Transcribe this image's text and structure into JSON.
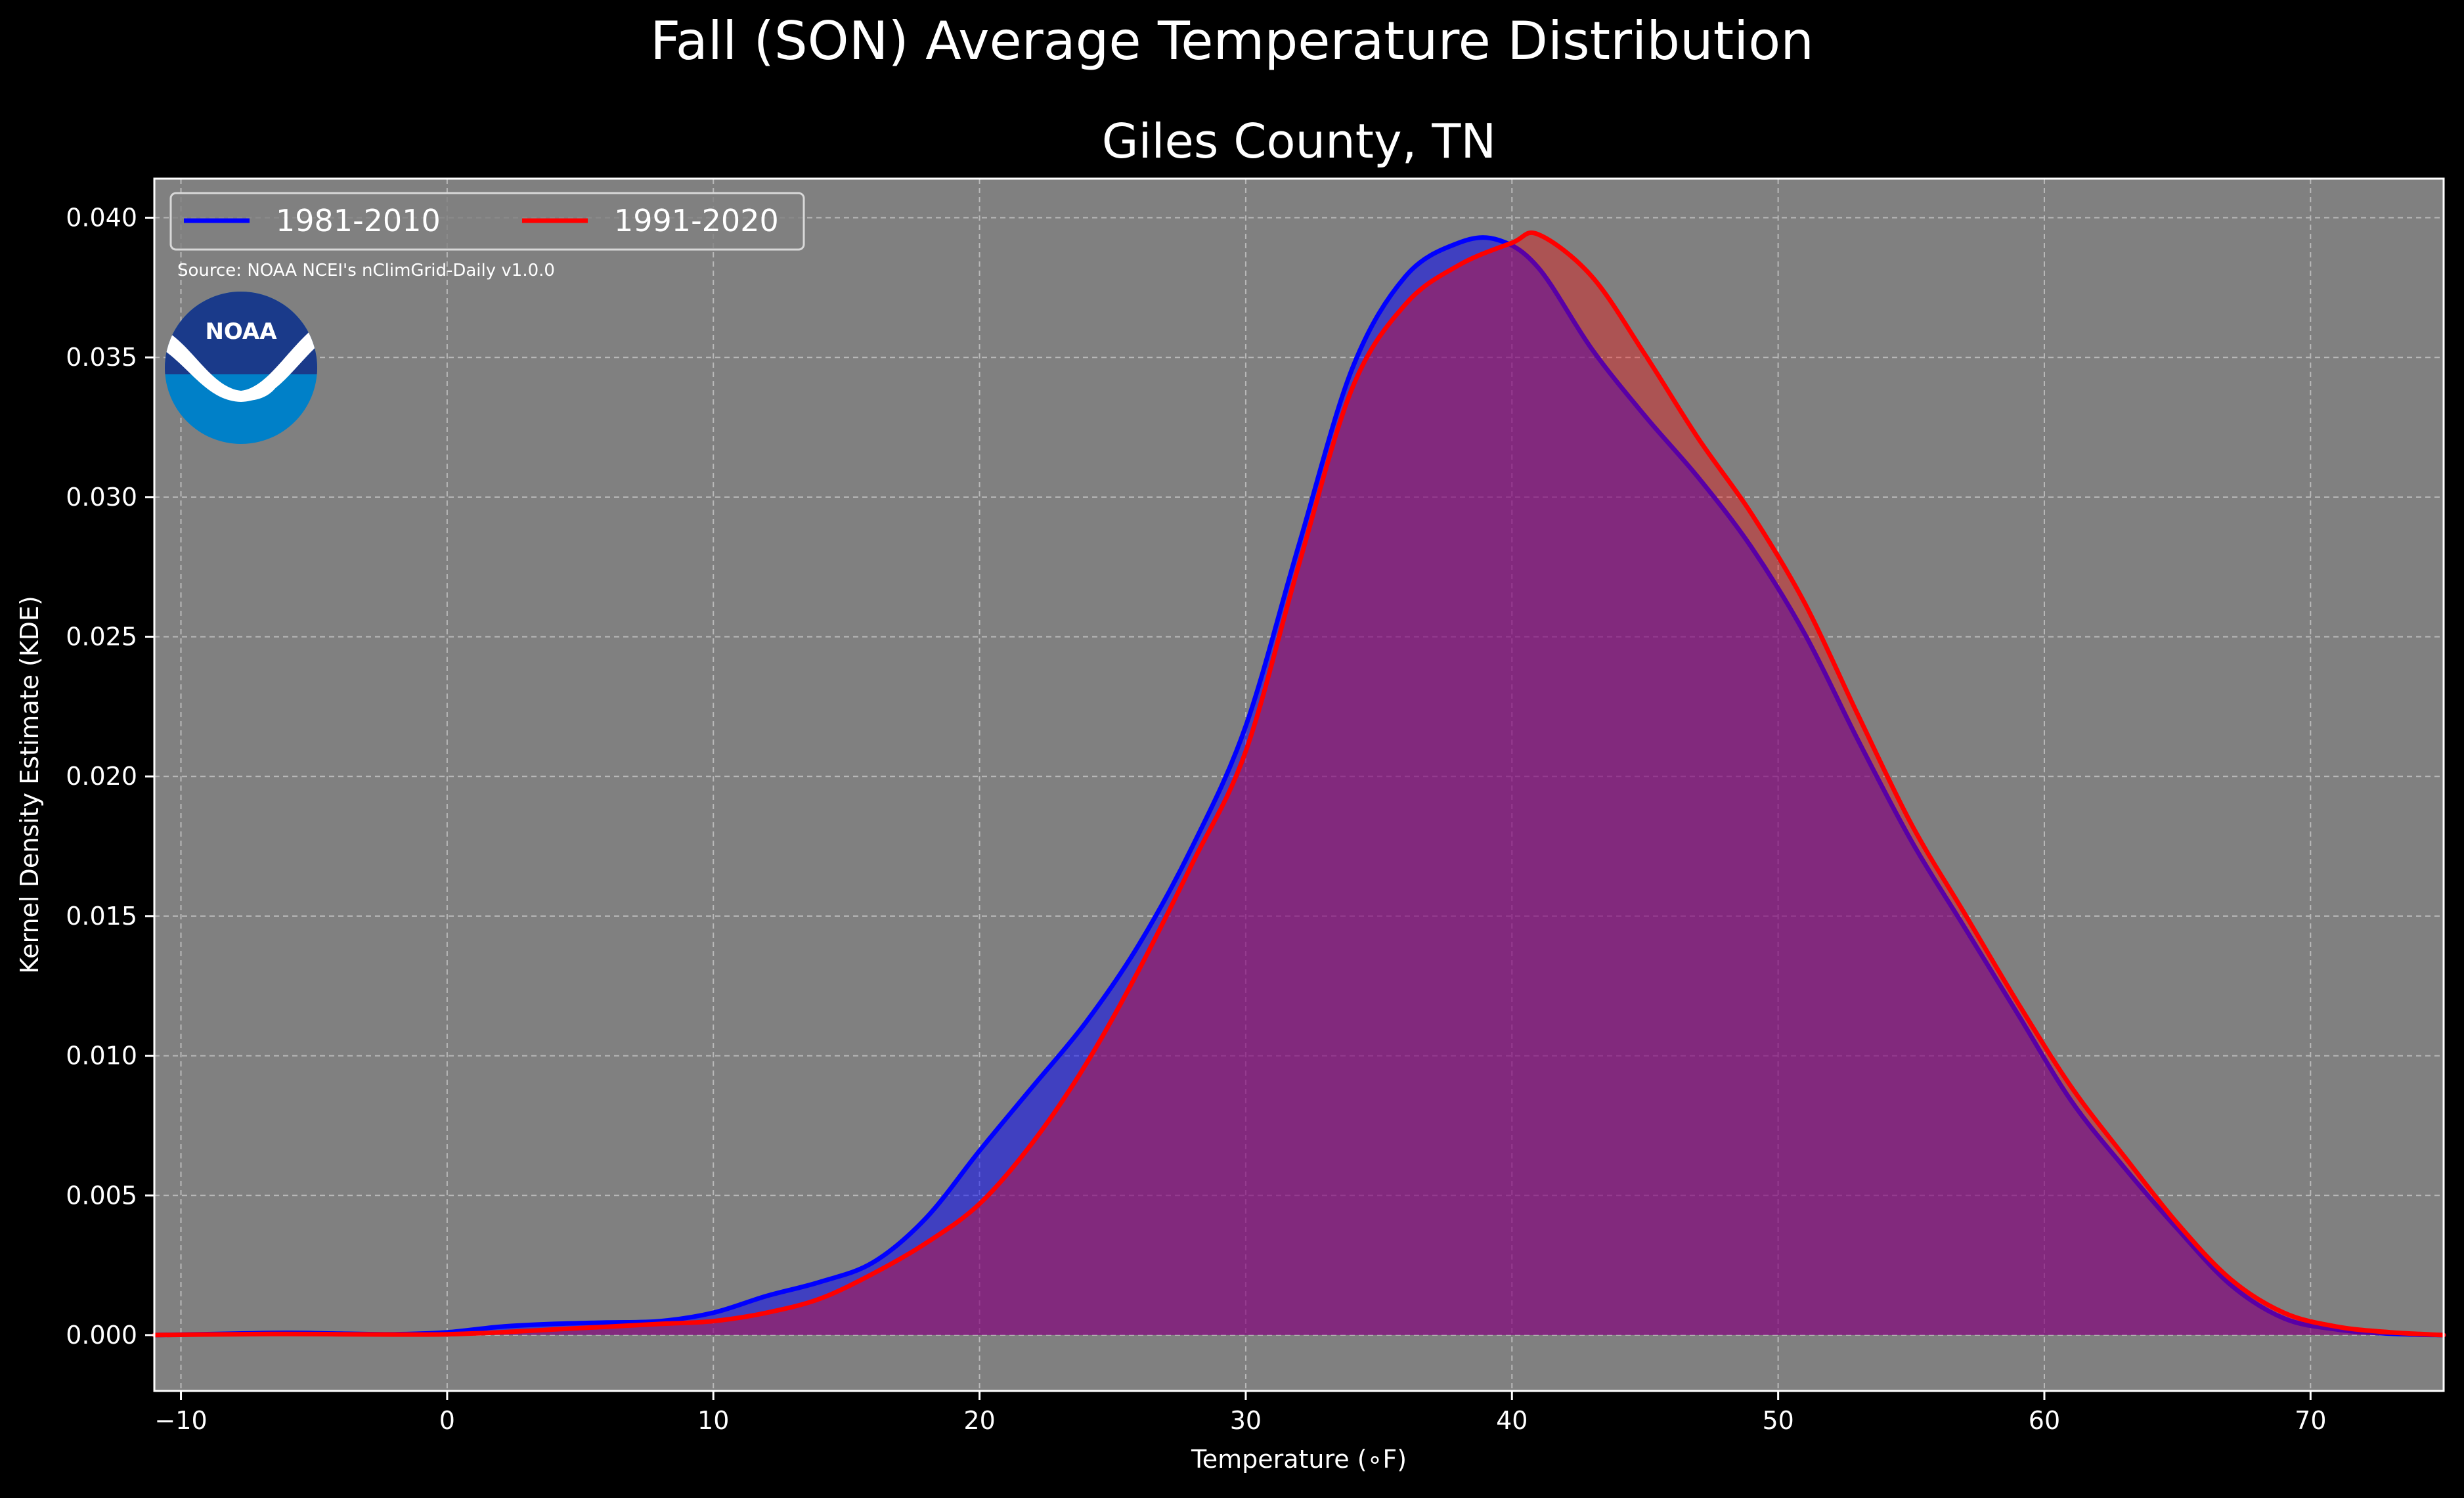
{
  "chart_data": {
    "type": "area",
    "suptitle": "Fall (SON) Average Temperature Distribution",
    "title": "Giles County, TN",
    "xlabel": "Temperature (∘F)",
    "ylabel": "Kernel Density Estimate (KDE)",
    "xlim": [
      -11,
      75
    ],
    "ylim": [
      -0.002,
      0.0414
    ],
    "x_ticks": [
      -10,
      0,
      10,
      20,
      30,
      40,
      50,
      60,
      70
    ],
    "x_tick_labels": [
      "−10",
      "0",
      "10",
      "20",
      "30",
      "40",
      "50",
      "60",
      "70"
    ],
    "y_ticks": [
      0.0,
      0.005,
      0.01,
      0.015,
      0.02,
      0.025,
      0.03,
      0.035,
      0.04
    ],
    "y_tick_labels": [
      "0.000",
      "0.005",
      "0.010",
      "0.015",
      "0.020",
      "0.025",
      "0.030",
      "0.035",
      "0.040"
    ],
    "grid": true,
    "legend_position": "top-left",
    "plot_background": "#808080",
    "figure_background": "#000000",
    "annotation": "Source: NOAA NCEI's nClimGrid-Daily v1.0.0",
    "logo": {
      "text": "NOAA",
      "icon": "noaa-logo-icon",
      "outer_color": "#0080c8",
      "inner_color": "#1a3a8a"
    },
    "series": [
      {
        "name": "1981-2010",
        "color": "#0000ff",
        "fill": "rgba(0,0,255,0.5)",
        "x": [
          -11,
          -8,
          -6,
          -4,
          -2,
          0,
          2,
          4,
          6,
          8,
          10,
          12,
          14,
          16,
          18,
          20,
          22,
          24,
          26,
          28,
          30,
          32,
          34,
          36,
          38,
          39.5,
          41,
          43,
          45,
          47,
          49,
          51,
          53,
          55,
          57,
          59,
          61,
          63,
          65,
          67,
          69,
          71,
          73,
          75
        ],
        "y": [
          0.0,
          5e-05,
          8e-05,
          5e-05,
          3e-05,
          0.0001,
          0.0003,
          0.0004,
          0.00045,
          0.0005,
          0.0008,
          0.0014,
          0.0019,
          0.0026,
          0.0042,
          0.0066,
          0.0089,
          0.0112,
          0.014,
          0.0175,
          0.0218,
          0.0283,
          0.0346,
          0.0379,
          0.0391,
          0.0392,
          0.0382,
          0.0353,
          0.0329,
          0.0307,
          0.0282,
          0.0251,
          0.0213,
          0.0177,
          0.0146,
          0.0115,
          0.0084,
          0.006,
          0.0038,
          0.0018,
          0.0006,
          0.0002,
          5e-05,
          0.0
        ]
      },
      {
        "name": "1991-2020",
        "color": "#ff0000",
        "fill": "rgba(255,0,0,0.35)",
        "x": [
          -11,
          -8,
          -6,
          -4,
          -2,
          0,
          2,
          4,
          6,
          8,
          10,
          12,
          14,
          16,
          18,
          20,
          22,
          24,
          26,
          28,
          30,
          32,
          34,
          36,
          38,
          40,
          41,
          43,
          45,
          47,
          49,
          51,
          53,
          55,
          57,
          59,
          61,
          63,
          65,
          67,
          69,
          71,
          73,
          75
        ],
        "y": [
          0.0,
          3e-05,
          4e-05,
          3e-05,
          2e-05,
          3e-05,
          0.0001,
          0.0002,
          0.0003,
          0.0004,
          0.0005,
          0.0008,
          0.0013,
          0.0022,
          0.0033,
          0.0047,
          0.0069,
          0.0097,
          0.0131,
          0.0169,
          0.0209,
          0.0276,
          0.0339,
          0.0369,
          0.0383,
          0.0391,
          0.0394,
          0.0379,
          0.0351,
          0.0321,
          0.0294,
          0.0262,
          0.0222,
          0.0183,
          0.0151,
          0.0119,
          0.0089,
          0.0064,
          0.004,
          0.002,
          0.0008,
          0.0003,
          0.0001,
          0.0
        ]
      }
    ]
  }
}
